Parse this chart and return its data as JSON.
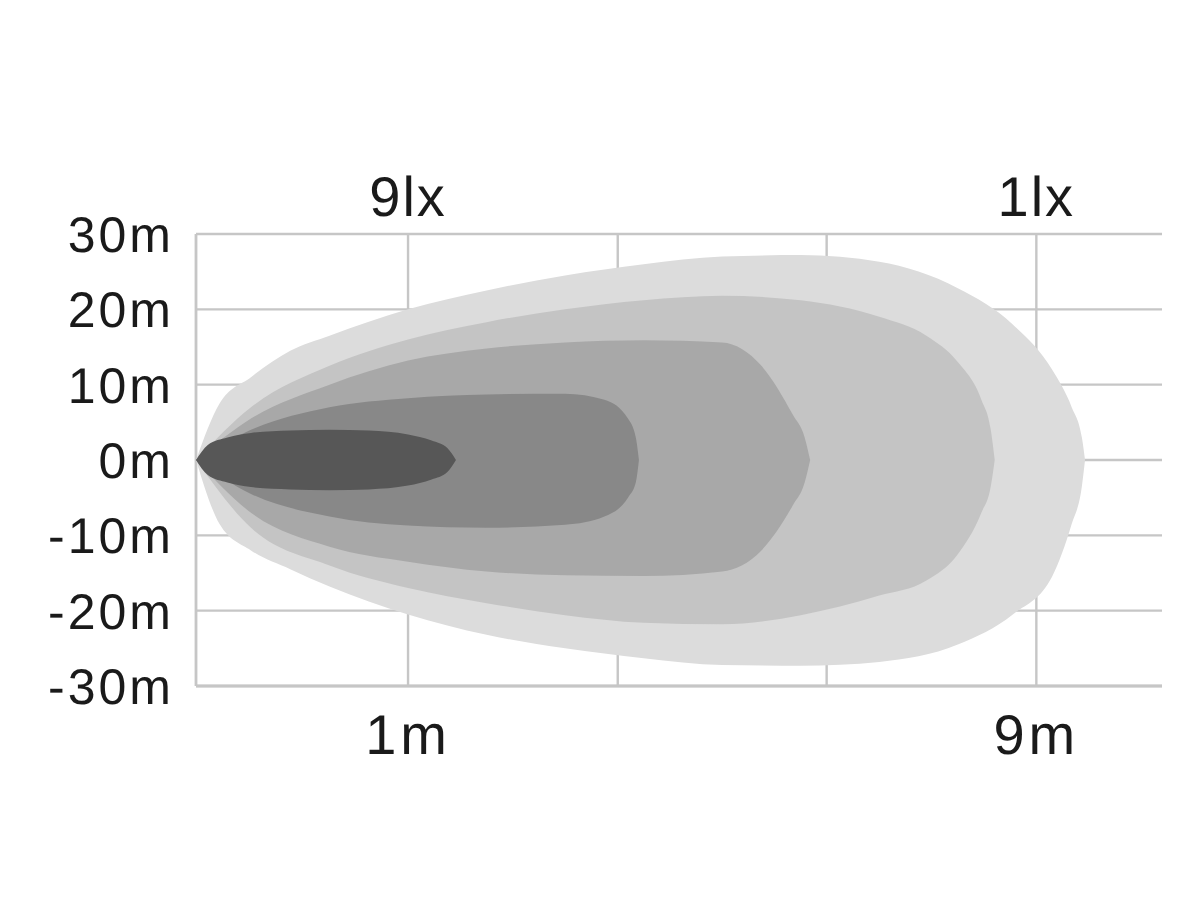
{
  "chart_data": {
    "type": "area",
    "xlim": [
      -1.7,
      10.6
    ],
    "xticks": [
      {
        "value": 1,
        "label": "1m"
      },
      {
        "value": 3.67,
        "label": null
      },
      {
        "value": 6.33,
        "label": null
      },
      {
        "value": 9,
        "label": "9m"
      }
    ],
    "x2lim": [
      11.7,
      -0.6
    ],
    "x2ticks": [
      {
        "value": 9,
        "label": "9lx"
      },
      {
        "value": 1,
        "label": "1lx"
      }
    ],
    "ylim": [
      -30,
      30
    ],
    "yticks": [
      {
        "value": -30,
        "label": "-30m"
      },
      {
        "value": -20,
        "label": "-20m"
      },
      {
        "value": -10,
        "label": "-10m"
      },
      {
        "value": 0,
        "label": "0m"
      },
      {
        "value": 10,
        "label": "10m"
      },
      {
        "value": 20,
        "label": "20m"
      },
      {
        "value": 30,
        "label": "30m"
      }
    ],
    "grid": true,
    "series": [
      {
        "color": "#dcdcdc",
        "x": [
          -1.7,
          -1.4,
          -1,
          -0.5,
          0,
          1,
          2,
          3,
          4,
          5,
          6,
          7,
          8,
          8.7,
          9.2,
          9.45,
          9.58,
          9.62
        ],
        "values": [
          0,
          7.5,
          11,
          14.5,
          16.5,
          20,
          22.5,
          24.5,
          26,
          27,
          27.2,
          26.3,
          22.8,
          18,
          12,
          7,
          3,
          0
        ]
      },
      {
        "color": "#dcdcdc",
        "x": [
          -1.7,
          -1.4,
          -1,
          -0.5,
          0,
          1,
          2,
          3,
          4,
          5,
          6,
          7,
          8,
          8.7,
          9.2,
          9.45,
          9.58,
          9.62
        ],
        "values": [
          0,
          -8.5,
          -12,
          -14.5,
          -16.8,
          -20.5,
          -23.2,
          -25,
          -26.3,
          -27.2,
          -27.3,
          -26.8,
          -24.5,
          -20.5,
          -15.5,
          -8.5,
          -3.5,
          0
        ]
      },
      {
        "color": "#c4c4c4",
        "x": [
          -1.7,
          -1,
          0,
          1,
          2,
          3,
          4,
          5,
          6,
          7,
          7.6,
          8,
          8.3,
          8.42,
          8.47
        ],
        "values": [
          0,
          7,
          12.5,
          16,
          18.3,
          20,
          21.2,
          21.8,
          21.2,
          19,
          16.5,
          13,
          8,
          4,
          0
        ]
      },
      {
        "color": "#c4c4c4",
        "x": [
          -1.7,
          -1,
          0,
          1,
          2,
          3,
          4,
          5,
          6,
          7,
          7.6,
          8,
          8.3,
          8.42,
          8.47
        ],
        "values": [
          0,
          -9,
          -14,
          -17,
          -19,
          -20.6,
          -21.6,
          -21.8,
          -20.6,
          -18,
          -16,
          -12.5,
          -7,
          -3.5,
          0
        ]
      },
      {
        "color": "#a8a8a8",
        "x": [
          -1.7,
          -1,
          0,
          1,
          2,
          3,
          4,
          5,
          5.5,
          5.9,
          6.05,
          6.12
        ],
        "values": [
          0,
          5.5,
          10,
          13.2,
          14.8,
          15.6,
          15.9,
          15.6,
          12.5,
          6,
          3,
          0
        ]
      },
      {
        "color": "#a8a8a8",
        "x": [
          -1.7,
          -1,
          0,
          1,
          2,
          3,
          4,
          5,
          5.5,
          5.9,
          6.05,
          6.12
        ],
        "values": [
          0,
          -7,
          -11.5,
          -13.5,
          -14.8,
          -15.3,
          -15.4,
          -14.8,
          -12,
          -6,
          -3,
          0
        ]
      },
      {
        "color": "#888888",
        "x": [
          -1.7,
          -1,
          0,
          1,
          2,
          3,
          3.5,
          3.8,
          3.9,
          3.94
        ],
        "values": [
          0,
          4,
          7,
          8.2,
          8.7,
          8.8,
          8,
          5.5,
          3,
          0
        ]
      },
      {
        "color": "#888888",
        "x": [
          -1.7,
          -1,
          0,
          1,
          2,
          3,
          3.5,
          3.8,
          3.9,
          3.94
        ],
        "values": [
          0,
          -4.5,
          -7.5,
          -8.7,
          -9,
          -8.6,
          -7.5,
          -5,
          -3,
          0
        ]
      },
      {
        "color": "#575757",
        "x": [
          -1.7,
          -1.55,
          -1.3,
          -1,
          -0.5,
          0,
          0.5,
          1,
          1.3,
          1.5,
          1.61
        ],
        "values": [
          0,
          2,
          3,
          3.6,
          3.9,
          4,
          3.9,
          3.4,
          2.6,
          1.6,
          0
        ]
      },
      {
        "color": "#575757",
        "x": [
          -1.7,
          -1.55,
          -1.3,
          -1,
          -0.5,
          0,
          0.5,
          1,
          1.3,
          1.5,
          1.61
        ],
        "values": [
          0,
          -2,
          -3,
          -3.6,
          -3.9,
          -4,
          -3.9,
          -3.4,
          -2.6,
          -1.6,
          0
        ]
      }
    ]
  }
}
